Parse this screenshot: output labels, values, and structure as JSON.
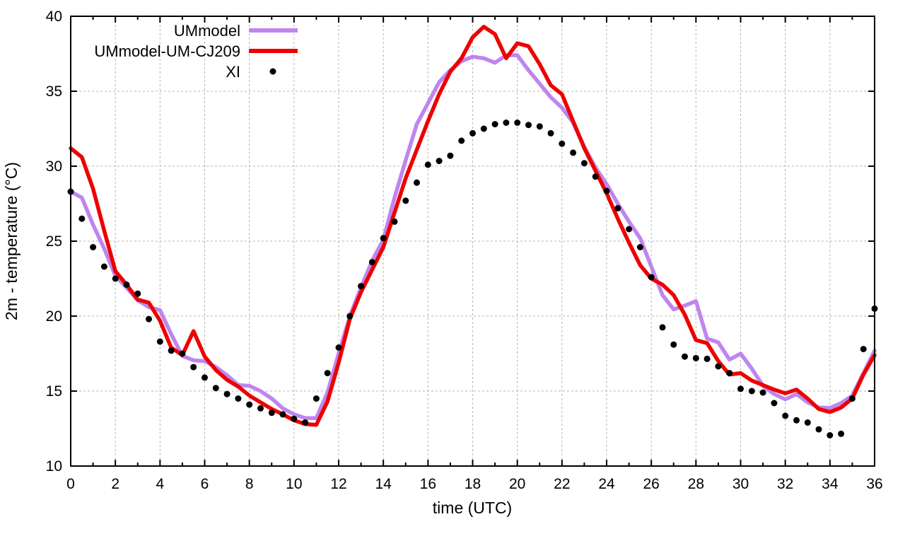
{
  "chart_data": {
    "type": "line",
    "title": "",
    "xlabel": "time (UTC)",
    "ylabel": "2m - temperature (°C)",
    "xlim": [
      0,
      36
    ],
    "ylim": [
      10,
      40
    ],
    "xticks_major": [
      0,
      2,
      4,
      6,
      8,
      10,
      12,
      14,
      16,
      18,
      20,
      22,
      24,
      26,
      28,
      30,
      32,
      34,
      36
    ],
    "xticks_minor": [
      1,
      3,
      5,
      7,
      9,
      11,
      13,
      15,
      17,
      19,
      21,
      23,
      25,
      27,
      29,
      31,
      33,
      35
    ],
    "yticks": [
      10,
      15,
      20,
      25,
      30,
      35,
      40
    ],
    "grid": true,
    "grid_color": "#b5b5b5",
    "axis_color": "#000000",
    "background_color": "#ffffff",
    "legend_position": "top-left-inside",
    "x_start": 0,
    "x_step": 0.5,
    "series": [
      {
        "name": "UMmodel",
        "type": "line",
        "color": "#bf85ef",
        "line_width": 5.5,
        "values": [
          28.3,
          27.9,
          26.1,
          24.5,
          22.7,
          21.9,
          21.05,
          20.6,
          20.4,
          18.8,
          17.35,
          17.05,
          17.0,
          16.6,
          16.05,
          15.4,
          15.35,
          15.0,
          14.5,
          13.85,
          13.45,
          13.2,
          13.2,
          14.9,
          17.5,
          20.0,
          21.9,
          23.7,
          25.1,
          27.9,
          30.4,
          32.8,
          34.2,
          35.6,
          36.4,
          37.0,
          37.3,
          37.2,
          36.9,
          37.4,
          37.4,
          36.4,
          35.5,
          34.6,
          33.9,
          32.9,
          31.3,
          29.9,
          28.8,
          27.5,
          26.3,
          25.2,
          23.3,
          21.4,
          20.45,
          20.7,
          21.0,
          18.5,
          18.25,
          17.1,
          17.5,
          16.5,
          15.35,
          14.8,
          14.45,
          14.8,
          14.25,
          13.9,
          13.87,
          14.2,
          14.7,
          16.2,
          17.7
        ]
      },
      {
        "name": "UMmodel-UM-CJ209",
        "type": "line",
        "color": "#ee0000",
        "line_width": 5.5,
        "values": [
          31.2,
          30.6,
          28.5,
          25.7,
          23.0,
          22.1,
          21.1,
          20.9,
          19.7,
          17.9,
          17.4,
          19.0,
          17.3,
          16.4,
          15.75,
          15.3,
          14.7,
          14.25,
          13.8,
          13.45,
          13.05,
          12.8,
          12.75,
          14.3,
          16.9,
          19.8,
          21.6,
          23.1,
          24.6,
          26.9,
          29.2,
          31.1,
          33.0,
          34.8,
          36.3,
          37.2,
          38.6,
          39.3,
          38.8,
          37.2,
          38.2,
          38.0,
          36.8,
          35.4,
          34.8,
          33.0,
          31.2,
          29.7,
          28.2,
          26.5,
          24.9,
          23.4,
          22.5,
          22.1,
          21.4,
          20.1,
          18.4,
          18.2,
          17.0,
          16.1,
          16.2,
          15.7,
          15.4,
          15.1,
          14.85,
          15.1,
          14.5,
          13.8,
          13.6,
          13.9,
          14.5,
          16.1,
          17.4
        ]
      },
      {
        "name": "XI",
        "type": "points",
        "color": "#000000",
        "point_radius": 4.5,
        "values": [
          28.3,
          26.5,
          24.6,
          23.3,
          22.5,
          22.1,
          21.5,
          19.8,
          18.3,
          17.7,
          17.5,
          16.6,
          15.9,
          15.2,
          14.8,
          14.5,
          14.1,
          13.85,
          13.55,
          13.45,
          13.15,
          12.9,
          14.5,
          16.2,
          17.9,
          20.0,
          22.0,
          23.6,
          25.2,
          26.3,
          27.7,
          28.9,
          30.1,
          30.35,
          30.7,
          31.7,
          32.2,
          32.5,
          32.8,
          32.9,
          32.9,
          32.75,
          32.65,
          32.2,
          31.5,
          30.9,
          30.2,
          29.3,
          28.35,
          27.2,
          25.8,
          24.6,
          22.6,
          19.25,
          18.1,
          17.3,
          17.2,
          17.15,
          16.65,
          16.2,
          15.15,
          15.0,
          14.9,
          14.2,
          13.35,
          13.05,
          12.9,
          12.45,
          12.05,
          12.15,
          14.5,
          17.8,
          20.5
        ]
      }
    ]
  }
}
